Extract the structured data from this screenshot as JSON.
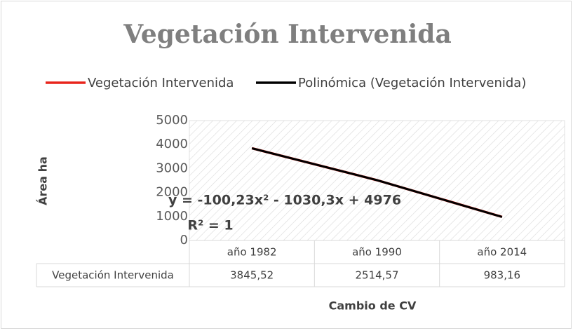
{
  "chart_data": {
    "type": "line",
    "title": "Vegetación Intervenida",
    "categories": [
      "año 1982",
      "año 1990",
      "año 2014"
    ],
    "series": [
      {
        "name": "Vegetación Intervenida",
        "color": "#e8251c",
        "values": [
          3845.52,
          2514.57,
          983.16
        ],
        "value_labels": [
          "3845,52",
          "2514,57",
          "983,16"
        ]
      },
      {
        "name": "Polinómica (Vegetación Intervenida)",
        "color": "#000000",
        "values": [
          3845.47,
          2514.48,
          983.03
        ]
      }
    ],
    "ylim": [
      0,
      5000
    ],
    "yticks": [
      0,
      1000,
      2000,
      3000,
      4000,
      5000
    ],
    "ylabel": "Área ha",
    "xlabel": "Cambio de CV",
    "annotations": [
      "y = -100,23x² - 1030,3x + 4976",
      "R² = 1"
    ],
    "grid": false,
    "legend": "top"
  }
}
